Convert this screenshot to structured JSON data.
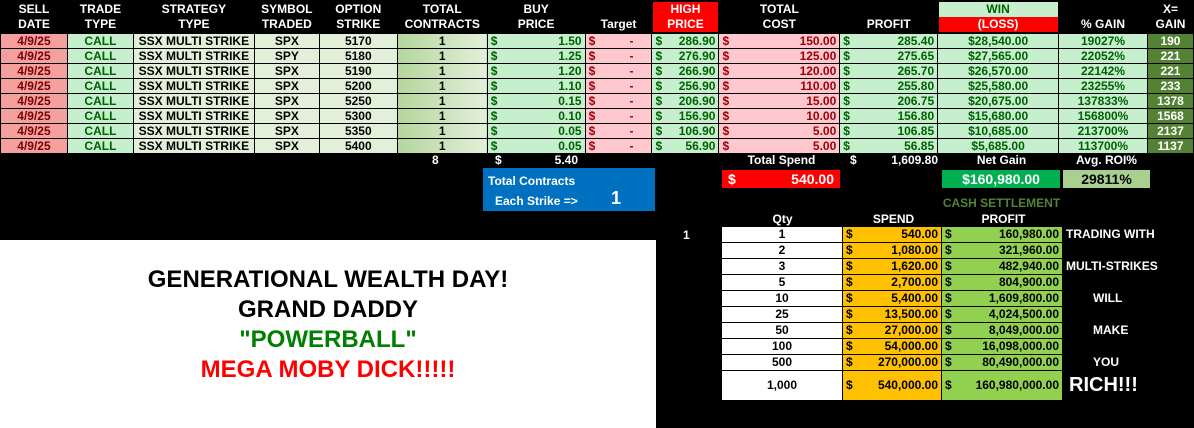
{
  "headers": {
    "sell_date": [
      "SELL",
      "DATE"
    ],
    "trade_type": [
      "TRADE",
      "TYPE"
    ],
    "strategy_type": [
      "STRATEGY",
      "TYPE"
    ],
    "symbol": [
      "SYMBOL",
      "TRADED"
    ],
    "strike": [
      "OPTION",
      "STRIKE"
    ],
    "contracts": [
      "TOTAL",
      "CONTRACTS"
    ],
    "buy_price": [
      "BUY",
      "PRICE"
    ],
    "target": "Target",
    "high_price": [
      "HIGH",
      "PRICE"
    ],
    "total_cost": [
      "TOTAL",
      "COST"
    ],
    "profit": "PROFIT",
    "win": "WIN",
    "loss": "(LOSS)",
    "pct_gain": "% GAIN",
    "x_gain": [
      "X=",
      "GAIN"
    ]
  },
  "rows": [
    {
      "date": "4/9/25",
      "type": "CALL",
      "strategy": "SSX MULTI STRIKE",
      "symbol": "SPX",
      "strike": "5170",
      "contracts": "1",
      "buy": "1.50",
      "target": "-",
      "high": "286.90",
      "cost": "150.00",
      "profit": "285.40",
      "win": "$28,540.00",
      "pct": "19027%",
      "x": "190"
    },
    {
      "date": "4/9/25",
      "type": "CALL",
      "strategy": "SSX MULTI STRIKE",
      "symbol": "SPY",
      "strike": "5180",
      "contracts": "1",
      "buy": "1.25",
      "target": "-",
      "high": "276.90",
      "cost": "125.00",
      "profit": "275.65",
      "win": "$27,565.00",
      "pct": "22052%",
      "x": "221"
    },
    {
      "date": "4/9/25",
      "type": "CALL",
      "strategy": "SSX MULTI STRIKE",
      "symbol": "SPX",
      "strike": "5190",
      "contracts": "1",
      "buy": "1.20",
      "target": "-",
      "high": "266.90",
      "cost": "120.00",
      "profit": "265.70",
      "win": "$26,570.00",
      "pct": "22142%",
      "x": "221"
    },
    {
      "date": "4/9/25",
      "type": "CALL",
      "strategy": "SSX MULTI STRIKE",
      "symbol": "SPX",
      "strike": "5200",
      "contracts": "1",
      "buy": "1.10",
      "target": "-",
      "high": "256.90",
      "cost": "110.00",
      "profit": "255.80",
      "win": "$25,580.00",
      "pct": "23255%",
      "x": "233"
    },
    {
      "date": "4/9/25",
      "type": "CALL",
      "strategy": "SSX MULTI STRIKE",
      "symbol": "SPX",
      "strike": "5250",
      "contracts": "1",
      "buy": "0.15",
      "target": "-",
      "high": "206.90",
      "cost": "15.00",
      "profit": "206.75",
      "win": "$20,675.00",
      "pct": "137833%",
      "x": "1378"
    },
    {
      "date": "4/9/25",
      "type": "CALL",
      "strategy": "SSX MULTI STRIKE",
      "symbol": "SPX",
      "strike": "5300",
      "contracts": "1",
      "buy": "0.10",
      "target": "-",
      "high": "156.90",
      "cost": "10.00",
      "profit": "156.80",
      "win": "$15,680.00",
      "pct": "156800%",
      "x": "1568"
    },
    {
      "date": "4/9/25",
      "type": "CALL",
      "strategy": "SSX MULTI STRIKE",
      "symbol": "SPX",
      "strike": "5350",
      "contracts": "1",
      "buy": "0.05",
      "target": "-",
      "high": "106.90",
      "cost": "5.00",
      "profit": "106.85",
      "win": "$10,685.00",
      "pct": "213700%",
      "x": "2137"
    },
    {
      "date": "4/9/25",
      "type": "CALL",
      "strategy": "SSX MULTI STRIKE",
      "symbol": "SPX",
      "strike": "5400",
      "contracts": "1",
      "buy": "0.05",
      "target": "-",
      "high": "56.90",
      "cost": "5.00",
      "profit": "56.85",
      "win": "$5,685.00",
      "pct": "113700%",
      "x": "1137"
    }
  ],
  "currency": "$",
  "totals": {
    "contracts": "8",
    "buy": "5.40",
    "total_spend_label": "Total Spend",
    "total_spend": "1,609.80",
    "net_gain_label": "Net Gain",
    "avg_roi_label": "Avg. ROI%",
    "spend_box": "540.00",
    "net_gain": "$160,980.00",
    "avg_roi": "29811%"
  },
  "contracts_box": {
    "label": "Total Contracts",
    "each_label": "Each Strike =>",
    "value": "1"
  },
  "cash": {
    "title": "CASH SETTLEMENT",
    "qty_header": "Qty",
    "spend_header": "SPEND",
    "profit_header": "PROFIT",
    "marker": "1",
    "rows": [
      {
        "qty": "1",
        "spend": "540.00",
        "profit": "160,980.00",
        "label": "TRADING WITH"
      },
      {
        "qty": "2",
        "spend": "1,080.00",
        "profit": "321,960.00",
        "label": ""
      },
      {
        "qty": "3",
        "spend": "1,620.00",
        "profit": "482,940.00",
        "label": "MULTI-STRIKES"
      },
      {
        "qty": "5",
        "spend": "2,700.00",
        "profit": "804,900.00",
        "label": ""
      },
      {
        "qty": "10",
        "spend": "5,400.00",
        "profit": "1,609,800.00",
        "label": "WILL"
      },
      {
        "qty": "25",
        "spend": "13,500.00",
        "profit": "4,024,500.00",
        "label": ""
      },
      {
        "qty": "50",
        "spend": "27,000.00",
        "profit": "8,049,000.00",
        "label": "MAKE"
      },
      {
        "qty": "100",
        "spend": "54,000.00",
        "profit": "16,098,000.00",
        "label": ""
      },
      {
        "qty": "500",
        "spend": "270,000.00",
        "profit": "80,490,000.00",
        "label": "YOU"
      },
      {
        "qty": "1,000",
        "spend": "540,000.00",
        "profit": "160,980,000.00",
        "label": "RICH!!!"
      }
    ]
  },
  "banner": {
    "line1": "GENERATIONAL WEALTH DAY!",
    "line2": "GRAND DADDY",
    "line3": "\"POWERBALL\"",
    "line4": "MEGA MOBY DICK!!!!!"
  },
  "colors": {
    "win_green": "#c6efce",
    "loss_red": "#ff0000",
    "blue_box": "#0070c0",
    "net_gain": "#00b050",
    "spend_orange": "#ffc000",
    "profit_green": "#92d050",
    "powerball": "#008000",
    "moby": "#ff0000"
  }
}
